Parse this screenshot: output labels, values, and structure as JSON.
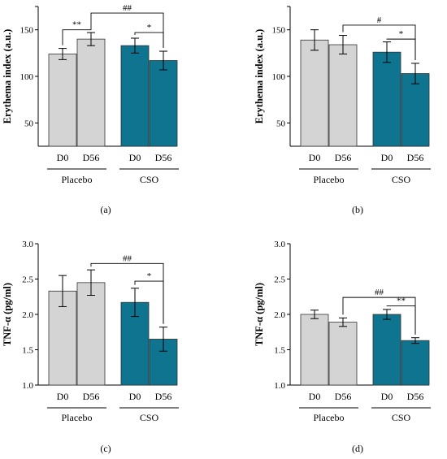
{
  "chart_data": [
    {
      "type": "bar",
      "panel_label": "(a)",
      "ylabel": "Erythema index (a.u.)",
      "ylim": [
        25,
        175
      ],
      "yticks": [
        50,
        100,
        150
      ],
      "categories": [
        "D0",
        "D56",
        "D0",
        "D56"
      ],
      "groups": [
        "Placebo",
        "CSO"
      ],
      "group_of_category": [
        0,
        0,
        1,
        1
      ],
      "values": [
        124,
        140,
        133,
        117
      ],
      "errors": [
        6,
        7,
        8,
        10
      ],
      "annotations": [
        {
          "from": 0,
          "to": 1,
          "label": "**",
          "level": 150
        },
        {
          "from": 1,
          "to": 3,
          "label": "##",
          "level": 168
        },
        {
          "from": 2,
          "to": 3,
          "label": "*",
          "level": 147
        }
      ]
    },
    {
      "type": "bar",
      "panel_label": "(b)",
      "ylabel": "Erythema index (a.u.)",
      "ylim": [
        25,
        175
      ],
      "yticks": [
        50,
        100,
        150
      ],
      "categories": [
        "D0",
        "D56",
        "D0",
        "D56"
      ],
      "groups": [
        "Placebo",
        "CSO"
      ],
      "group_of_category": [
        0,
        0,
        1,
        1
      ],
      "values": [
        139,
        134,
        126,
        103
      ],
      "errors": [
        11,
        10,
        11,
        11
      ],
      "annotations": [
        {
          "from": 1,
          "to": 3,
          "label": "#",
          "level": 155
        },
        {
          "from": 2,
          "to": 3,
          "label": "*",
          "level": 140
        }
      ]
    },
    {
      "type": "bar",
      "panel_label": "(c)",
      "ylabel": "TNF-α (pg/ml)",
      "ylim": [
        1.0,
        3.0
      ],
      "yticks": [
        1.0,
        1.5,
        2.0,
        2.5,
        3.0
      ],
      "categories": [
        "D0",
        "D56",
        "D0",
        "D56"
      ],
      "groups": [
        "Placebo",
        "CSO"
      ],
      "group_of_category": [
        0,
        0,
        1,
        1
      ],
      "values": [
        2.33,
        2.45,
        2.17,
        1.65
      ],
      "errors": [
        0.22,
        0.18,
        0.2,
        0.17
      ],
      "annotations": [
        {
          "from": 1,
          "to": 3,
          "label": "##",
          "level": 2.72
        },
        {
          "from": 2,
          "to": 3,
          "label": "*",
          "level": 2.47
        }
      ]
    },
    {
      "type": "bar",
      "panel_label": "(d)",
      "ylabel": "TNF-α (pg/ml)",
      "ylim": [
        1.0,
        3.0
      ],
      "yticks": [
        1.0,
        1.5,
        2.0,
        2.5,
        3.0
      ],
      "categories": [
        "D0",
        "D56",
        "D0",
        "D56"
      ],
      "groups": [
        "Placebo",
        "CSO"
      ],
      "group_of_category": [
        0,
        0,
        1,
        1
      ],
      "values": [
        2.0,
        1.89,
        2.0,
        1.63
      ],
      "errors": [
        0.06,
        0.06,
        0.07,
        0.04
      ],
      "annotations": [
        {
          "from": 1,
          "to": 3,
          "label": "##",
          "level": 2.24
        },
        {
          "from": 2,
          "to": 3,
          "label": "**",
          "level": 2.12
        }
      ]
    }
  ],
  "colors": {
    "placebo_fill": "#d4d4d4",
    "cso_fill": "#0e7490",
    "bar_edge": "#333333",
    "axis": "#000000"
  }
}
